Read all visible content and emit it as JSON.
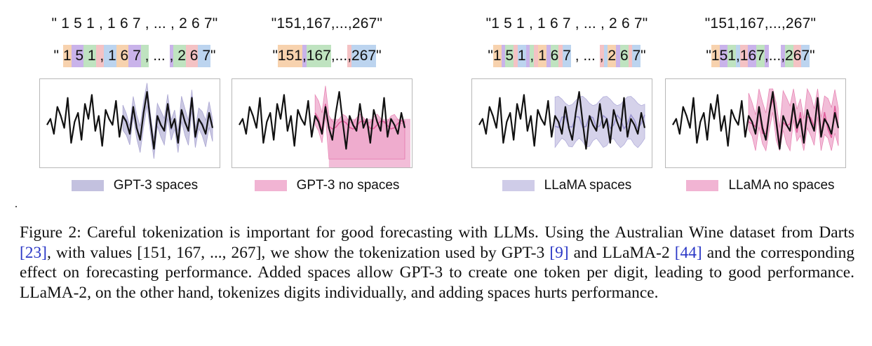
{
  "panels": [
    {
      "quote": "\" 1 5 1 , 1 6 7 , ... , 2 6 7\"",
      "tokens": [
        {
          "t": "\" ",
          "c": "none"
        },
        {
          "t": "1",
          "c": "#f7d2ae"
        },
        {
          "t": " 5",
          "c": "#c9b3ea"
        },
        {
          "t": " 1",
          "c": "#bfe3c0"
        },
        {
          "t": " ,",
          "c": "#f4c2c4"
        },
        {
          "t": " 1",
          "c": "#bcd4ef"
        },
        {
          "t": " 6",
          "c": "#f7d2ae"
        },
        {
          "t": " 7",
          "c": "#c9b3ea"
        },
        {
          "t": " ,",
          "c": "#bfe3c0"
        },
        {
          "t": " ... ",
          "c": "none"
        },
        {
          "t": ",",
          "c": "#c9b3ea"
        },
        {
          "t": " 2",
          "c": "#bfe3c0"
        },
        {
          "t": " 6",
          "c": "#f4c2c4"
        },
        {
          "t": " 7",
          "c": "#bcd4ef"
        },
        {
          "t": "\"",
          "c": "none"
        }
      ],
      "legend": "GPT-3 spaces",
      "color": "#b9b6d9",
      "line": "#8f89c4"
    },
    {
      "quote": "\"151,167,...,267\"",
      "tokens": [
        {
          "t": "\"",
          "c": "none"
        },
        {
          "t": "151",
          "c": "#f7d2ae"
        },
        {
          "t": ",",
          "c": "#c9b3ea"
        },
        {
          "t": "167",
          "c": "#bfe3c0"
        },
        {
          "t": ",...",
          "c": "none"
        },
        {
          "t": ",",
          "c": "#f4c2c4"
        },
        {
          "t": "267",
          "c": "#bcd4ef"
        },
        {
          "t": "\"",
          "c": "none"
        }
      ],
      "legend": "GPT-3 no spaces",
      "color": "#eea7cb",
      "line": "#e0609d"
    },
    {
      "quote": "\"1 5 1 , 1 6 7 , ... , 2 6 7\"",
      "tokens": [
        {
          "t": "\"",
          "c": "none"
        },
        {
          "t": "1",
          "c": "#f7d2ae"
        },
        {
          "t": " ",
          "c": "#c9b3ea"
        },
        {
          "t": "5",
          "c": "#bfe3c0"
        },
        {
          "t": " ",
          "c": "#f4c2c4"
        },
        {
          "t": "1",
          "c": "#bcd4ef"
        },
        {
          "t": " ",
          "c": "#c9b3ea"
        },
        {
          "t": ",",
          "c": "#bfe3c0"
        },
        {
          "t": " ",
          "c": "#f4c2c4"
        },
        {
          "t": "1",
          "c": "#f7d2ae"
        },
        {
          "t": " ",
          "c": "#c9b3ea"
        },
        {
          "t": "6",
          "c": "#bfe3c0"
        },
        {
          "t": " ",
          "c": "#f4c2c4"
        },
        {
          "t": "7",
          "c": "#bcd4ef"
        },
        {
          "t": " ,",
          "c": "none"
        },
        {
          "t": " ... ",
          "c": "none"
        },
        {
          "t": ",",
          "c": "#f4c2c4"
        },
        {
          "t": " ",
          "c": "#bcd4ef"
        },
        {
          "t": "2",
          "c": "#f7d2ae"
        },
        {
          "t": " ",
          "c": "#c9b3ea"
        },
        {
          "t": "6",
          "c": "#bfe3c0"
        },
        {
          "t": " ",
          "c": "#f4c2c4"
        },
        {
          "t": "7",
          "c": "#bcd4ef"
        },
        {
          "t": "\"",
          "c": "none"
        }
      ],
      "legend": "LLaMA spaces",
      "color": "#c7c3e4",
      "line": "#9a94cf"
    },
    {
      "quote": "\"151,167,...,267\"",
      "tokens": [
        {
          "t": "\"",
          "c": "none"
        },
        {
          "t": "1",
          "c": "#f7d2ae"
        },
        {
          "t": "5",
          "c": "#c9b3ea"
        },
        {
          "t": "1",
          "c": "#bfe3c0"
        },
        {
          "t": ",",
          "c": "#bcd4ef"
        },
        {
          "t": "1",
          "c": "#f4c2c4"
        },
        {
          "t": "6",
          "c": "#c9b3ea"
        },
        {
          "t": "7",
          "c": "#bfe3c0"
        },
        {
          "t": ",",
          "c": "#c9b3ea"
        },
        {
          "t": "...",
          "c": "none"
        },
        {
          "t": ",",
          "c": "#c9b3ea"
        },
        {
          "t": "2",
          "c": "#bfe3c0"
        },
        {
          "t": "6",
          "c": "#f4c2c4"
        },
        {
          "t": "7",
          "c": "#bcd4ef"
        },
        {
          "t": "\"",
          "c": "none"
        }
      ],
      "legend": "LLaMA no spaces",
      "color": "#eea7cb",
      "line": "#e0609d"
    }
  ],
  "series_history": [
    0.45,
    0.55,
    0.3,
    0.75,
    0.6,
    0.4,
    0.9,
    0.15,
    0.5,
    0.65,
    0.2,
    0.8,
    0.55,
    0.95,
    0.35,
    0.6,
    0.1,
    0.7,
    0.55,
    0.45,
    0.85,
    0.25,
    0.6,
    0.5,
    0.3,
    0.75,
    0.4,
    0.2,
    0.65,
    1.0,
    0.5,
    0.05,
    0.6,
    0.45,
    0.35,
    0.8,
    0.4,
    0.55,
    0.15,
    0.7,
    0.5,
    0.35,
    0.9,
    0.25,
    0.55,
    0.45,
    0.3,
    0.65,
    0.4
  ],
  "caption": {
    "label": "Figure 2:",
    "part1": " Careful tokenization is important for good forecasting with LLMs. Using the Australian Wine dataset from Darts ",
    "cite1": "[23]",
    "part2": ", with values [151, 167, ..., 267], we show the tokenization used by GPT-3 ",
    "cite2": "[9]",
    "part3": " and LLaMA-2 ",
    "cite3": "[44]",
    "part4": " and the corresponding effect on forecasting performance. Added spaces allow GPT-3 to create one token per digit, leading to good performance. LLaMA-2, on the other hand, tokenizes digits individually, and adding spaces hurts performance."
  }
}
